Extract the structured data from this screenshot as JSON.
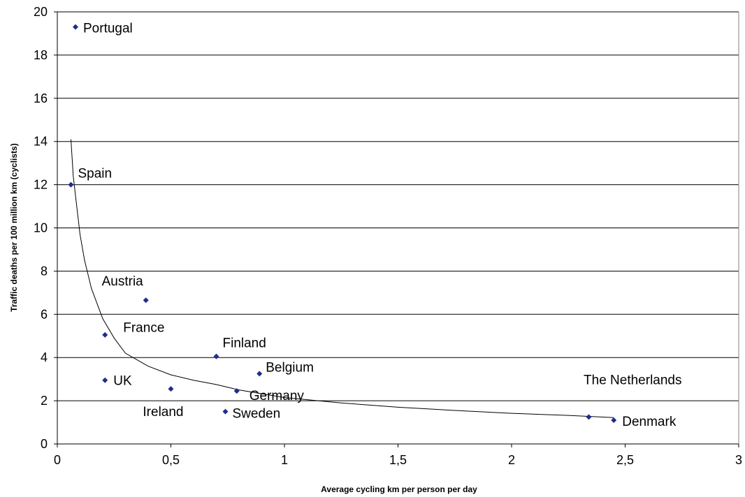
{
  "chart_data": {
    "type": "scatter",
    "title": "",
    "xlabel": "Average cycling km per person per day",
    "ylabel": "Traffic deaths per 100 million km (cyclists)",
    "xlim": [
      0,
      3
    ],
    "ylim": [
      0,
      20
    ],
    "x_ticks": [
      "0",
      "0,5",
      "1",
      "1,5",
      "2",
      "2,5",
      "3"
    ],
    "y_ticks": [
      "0",
      "2",
      "4",
      "6",
      "8",
      "10",
      "12",
      "14",
      "16",
      "18",
      "20"
    ],
    "grid": "horizontal",
    "marker_color": "#1f2d8c",
    "points": [
      {
        "label": "Portugal",
        "x": 0.08,
        "y": 19.3
      },
      {
        "label": "Spain",
        "x": 0.06,
        "y": 12.0
      },
      {
        "label": "Austria",
        "x": 0.39,
        "y": 6.65
      },
      {
        "label": "France",
        "x": 0.21,
        "y": 5.05
      },
      {
        "label": "UK",
        "x": 0.21,
        "y": 2.95
      },
      {
        "label": "Ireland",
        "x": 0.5,
        "y": 2.55
      },
      {
        "label": "Finland",
        "x": 0.7,
        "y": 4.05
      },
      {
        "label": "Belgium",
        "x": 0.89,
        "y": 3.25
      },
      {
        "label": "Germany",
        "x": 0.79,
        "y": 2.45
      },
      {
        "label": "Sweden",
        "x": 0.74,
        "y": 1.5
      },
      {
        "label": "The Netherlands",
        "x": 2.34,
        "y": 1.25
      },
      {
        "label": "Denmark",
        "x": 2.45,
        "y": 1.1
      }
    ],
    "trendline": {
      "type": "power",
      "color": "#000000",
      "points": [
        [
          0.06,
          14.1
        ],
        [
          0.07,
          12.4
        ],
        [
          0.08,
          11.5
        ],
        [
          0.1,
          9.7
        ],
        [
          0.12,
          8.5
        ],
        [
          0.15,
          7.2
        ],
        [
          0.2,
          5.8
        ],
        [
          0.25,
          4.9
        ],
        [
          0.3,
          4.2
        ],
        [
          0.4,
          3.6
        ],
        [
          0.5,
          3.2
        ],
        [
          0.6,
          2.95
        ],
        [
          0.7,
          2.75
        ],
        [
          0.8,
          2.5
        ],
        [
          1.0,
          2.15
        ],
        [
          1.25,
          1.9
        ],
        [
          1.5,
          1.7
        ],
        [
          1.75,
          1.55
        ],
        [
          2.0,
          1.42
        ],
        [
          2.25,
          1.32
        ],
        [
          2.45,
          1.22
        ]
      ]
    }
  }
}
